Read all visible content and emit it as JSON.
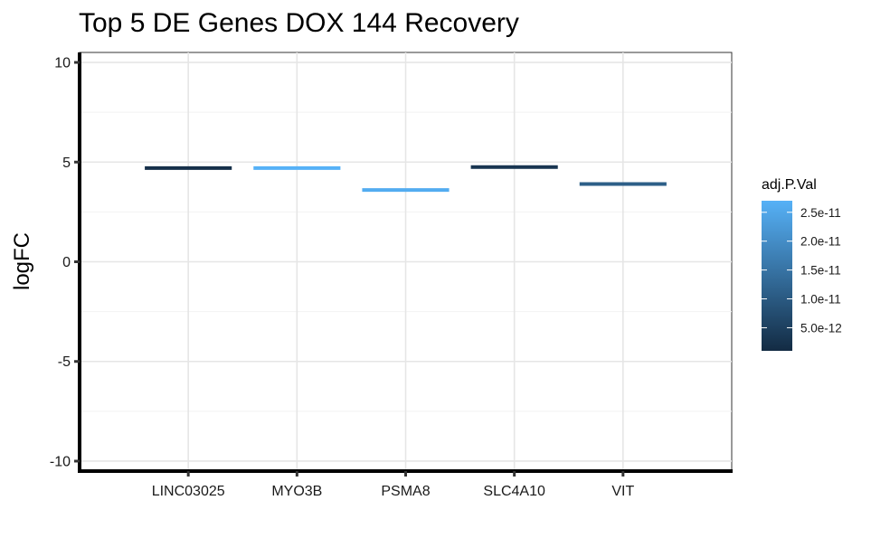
{
  "chart_data": {
    "type": "bar",
    "title": "Top 5 DE Genes DOX 144 Recovery",
    "xlabel": "",
    "ylabel": "logFC",
    "categories": [
      "LINC03025",
      "MYO3B",
      "PSMA8",
      "SLC4A10",
      "VIT"
    ],
    "values": [
      4.7,
      4.7,
      3.6,
      4.75,
      3.9
    ],
    "adj_p_val": [
      2e-12,
      2.7e-11,
      2.6e-11,
      3e-12,
      1.1e-11
    ],
    "ylim": [
      -10.5,
      10.5
    ],
    "yticks": [
      -10,
      -5,
      0,
      5,
      10
    ],
    "ytick_labels": [
      "-10",
      "-5",
      "0",
      "5",
      "10"
    ],
    "grid": true,
    "legend": {
      "title": "adj.P.Val",
      "position": "right",
      "ticks": [
        5e-12,
        1e-11,
        1.5e-11,
        2e-11,
        2.5e-11
      ],
      "tick_labels": [
        "5.0e-12",
        "1.0e-11",
        "1.5e-11",
        "2.0e-11",
        "2.5e-11"
      ],
      "range": [
        1e-12,
        2.7e-11
      ],
      "color_low": "#132b43",
      "color_high": "#56b1f7"
    }
  }
}
